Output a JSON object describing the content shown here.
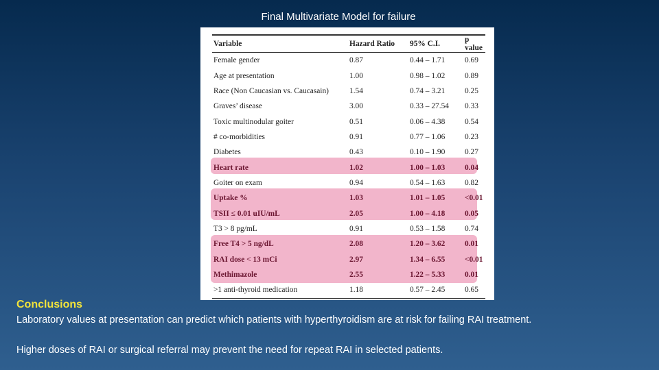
{
  "slide": {
    "title": "Final Multivariate Model for failure",
    "conclusions_heading": "Conclusions",
    "conclusion_1": "Laboratory values at presentation can predict which patients with hyperthyroidism are at risk for failing RAI treatment.",
    "conclusion_2": "Higher doses of RAI or surgical referral may prevent the need for repeat RAI in selected patients."
  },
  "table": {
    "headers": [
      "Variable",
      "Hazard Ratio",
      "95% C.I.",
      "p value"
    ],
    "rows": [
      {
        "variable": "Female gender",
        "hr": "0.87",
        "ci": "0.44 – 1.71",
        "p": "0.69",
        "highlight": false
      },
      {
        "variable": "Age at presentation",
        "hr": "1.00",
        "ci": "0.98 – 1.02",
        "p": "0.89",
        "highlight": false
      },
      {
        "variable": "Race (Non Caucasian vs. Caucasain)",
        "hr": "1.54",
        "ci": "0.74 – 3.21",
        "p": "0.25",
        "highlight": false
      },
      {
        "variable": "Graves’ disease",
        "hr": "3.00",
        "ci": "0.33 – 27.54",
        "p": "0.33",
        "highlight": false
      },
      {
        "variable": "Toxic multinodular goiter",
        "hr": "0.51",
        "ci": "0.06 – 4.38",
        "p": "0.54",
        "highlight": false
      },
      {
        "variable": "# co-morbidities",
        "hr": "0.91",
        "ci": "0.77 – 1.06",
        "p": "0.23",
        "highlight": false
      },
      {
        "variable": "Diabetes",
        "hr": "0.43",
        "ci": "0.10 – 1.90",
        "p": "0.27",
        "highlight": false
      },
      {
        "variable": "Heart rate",
        "hr": "1.02",
        "ci": "1.00 – 1.03",
        "p": "0.04",
        "highlight": true
      },
      {
        "variable": "Goiter on exam",
        "hr": "0.94",
        "ci": "0.54 – 1.63",
        "p": "0.82",
        "highlight": false
      },
      {
        "variable": "Uptake %",
        "hr": "1.03",
        "ci": "1.01 – 1.05",
        "p": "<0.01",
        "highlight": true
      },
      {
        "variable": "TSII ≤ 0.01 uIU/mL",
        "hr": "2.05",
        "ci": "1.00 – 4.18",
        "p": "0.05",
        "highlight": true
      },
      {
        "variable": "T3 > 8 pg/mL",
        "hr": "0.91",
        "ci": "0.53 – 1.58",
        "p": "0.74",
        "highlight": false
      },
      {
        "variable": "Free T4 > 5 ng/dL",
        "hr": "2.08",
        "ci": "1.20 – 3.62",
        "p": "0.01",
        "highlight": true
      },
      {
        "variable": "RAI dose < 13 mCi",
        "hr": "2.97",
        "ci": "1.34 – 6.55",
        "p": "<0.01",
        "highlight": true
      },
      {
        "variable": "Methimazole",
        "hr": "2.55",
        "ci": "1.22 – 5.33",
        "p": "0.01",
        "highlight": true
      },
      {
        "variable": ">1 anti-thyroid medication",
        "hr": "1.18",
        "ci": "0.57 – 2.45",
        "p": "0.65",
        "highlight": false
      }
    ]
  }
}
